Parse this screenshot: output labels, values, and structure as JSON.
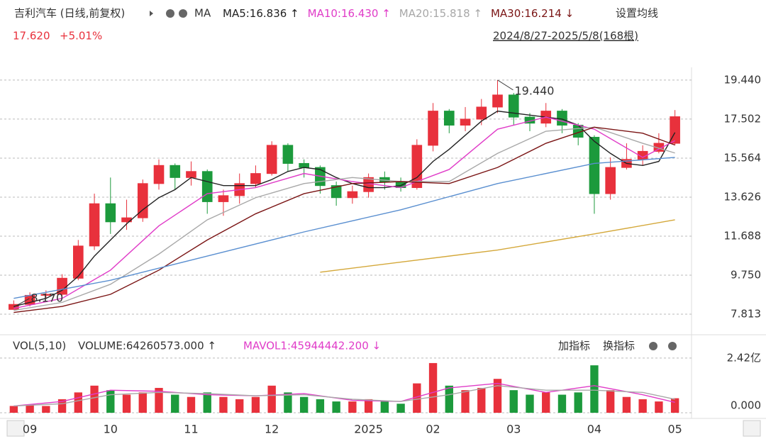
{
  "chart_data": {
    "type": "candlestick",
    "title": "吉利汽车 (日线,前复权)",
    "ma_label": "MA",
    "settings": "设置均线",
    "price": "17.620",
    "change": "+5.01%",
    "range": "2024/8/27-2025/5/8(168根)",
    "up_color": "#e8313c",
    "down_color": "#1c9a3c",
    "open": [
      8.05,
      8.3,
      8.75,
      8.8,
      9.6,
      11.2,
      13.3,
      12.4,
      12.6,
      14.3,
      15.2,
      14.6,
      14.9,
      13.4,
      13.7,
      14.3,
      14.8,
      16.2,
      15.3,
      15.1,
      14.2,
      13.6,
      13.9,
      14.6,
      14.4,
      14.1,
      16.2,
      17.9,
      17.2,
      17.5,
      18.1,
      18.7,
      17.6,
      17.3,
      17.9,
      17.2,
      16.6,
      13.8,
      15.1,
      15.5,
      15.9,
      16.3
    ],
    "high": [
      8.5,
      8.9,
      9.0,
      9.8,
      11.5,
      13.8,
      14.6,
      13.5,
      14.5,
      15.5,
      15.3,
      15.4,
      15.0,
      14.0,
      14.8,
      15.2,
      16.4,
      16.3,
      15.5,
      15.2,
      14.4,
      14.2,
      14.8,
      14.9,
      14.6,
      16.5,
      18.3,
      18.0,
      18.1,
      18.5,
      19.44,
      18.8,
      17.8,
      18.3,
      18.0,
      17.3,
      16.7,
      15.6,
      16.3,
      16.2,
      16.8,
      17.95
    ],
    "low": [
      8.17,
      8.2,
      8.6,
      8.7,
      9.5,
      11.0,
      11.8,
      12.0,
      12.4,
      14.0,
      14.0,
      14.2,
      12.8,
      12.7,
      13.3,
      14.1,
      14.7,
      14.9,
      14.6,
      13.8,
      13.2,
      13.3,
      13.6,
      14.0,
      13.9,
      14.0,
      15.9,
      16.8,
      16.9,
      17.2,
      17.8,
      17.2,
      16.9,
      17.1,
      16.8,
      16.2,
      12.8,
      13.5,
      15.0,
      15.2,
      15.8,
      16.2
    ],
    "close": [
      8.3,
      8.75,
      8.8,
      9.6,
      11.2,
      13.3,
      12.4,
      12.6,
      14.3,
      15.2,
      14.6,
      14.9,
      13.4,
      13.7,
      14.3,
      14.8,
      16.2,
      15.3,
      15.1,
      14.2,
      13.6,
      13.9,
      14.6,
      14.4,
      14.1,
      16.2,
      17.9,
      17.2,
      17.5,
      18.1,
      18.7,
      17.6,
      17.3,
      17.9,
      17.2,
      16.6,
      13.8,
      15.1,
      15.5,
      15.9,
      16.3,
      17.62
    ],
    "ylim": [
      7.04,
      20.07
    ],
    "yticks": [
      7.813,
      {
        "value": 9.75,
        "label": "9.750"
      },
      11.688,
      13.626,
      15.564,
      17.502,
      {
        "value": 19.44,
        "label": "19.440"
      }
    ],
    "xticks": [
      {
        "value": 1,
        "label": "09"
      },
      {
        "value": 6,
        "label": "10"
      },
      {
        "value": 11,
        "label": "11"
      },
      {
        "value": 16,
        "label": "12"
      },
      {
        "value": 22,
        "label": "2025"
      },
      {
        "value": 26,
        "label": "02"
      },
      {
        "value": 31,
        "label": "03"
      },
      {
        "value": 36,
        "label": "04"
      },
      {
        "value": 41,
        "label": "05"
      }
    ],
    "legend_labels": [
      "MA5:16.836 ↑",
      "MA10:16.430 ↑",
      "MA20:15.818 ↑",
      "MA30:16.214 ↓"
    ],
    "series": [
      {
        "name": "MA5",
        "color": "#222222",
        "x": [
          0,
          1,
          2,
          3,
          4,
          5,
          6,
          7,
          8,
          9,
          10,
          11,
          12,
          13,
          14,
          15,
          16,
          17,
          18,
          19,
          20,
          21,
          22,
          23,
          24,
          25,
          26,
          27,
          28,
          29,
          30,
          31,
          32,
          33,
          34,
          35,
          36,
          37,
          38,
          39,
          40,
          41
        ],
        "values": [
          8.2,
          8.4,
          8.6,
          9.0,
          9.7,
          10.7,
          11.5,
          12.3,
          13.0,
          13.6,
          14.0,
          14.6,
          14.4,
          14.2,
          14.2,
          14.2,
          14.5,
          14.9,
          15.1,
          15.0,
          14.6,
          14.3,
          14.1,
          14.1,
          14.2,
          14.6,
          15.4,
          16.0,
          16.7,
          17.4,
          17.9,
          17.8,
          17.7,
          17.6,
          17.5,
          17.2,
          16.4,
          15.8,
          15.3,
          15.2,
          15.4,
          16.836
        ]
      },
      {
        "name": "MA10",
        "color": "#e03cc8",
        "x": [
          0,
          3,
          6,
          9,
          12,
          15,
          18,
          21,
          24,
          27,
          30,
          33,
          36,
          39,
          41
        ],
        "values": [
          8.1,
          8.6,
          10.0,
          12.2,
          13.8,
          14.1,
          14.8,
          14.4,
          14.1,
          15.0,
          17.0,
          17.6,
          17.0,
          15.6,
          16.43
        ]
      },
      {
        "name": "MA20",
        "color": "#a8a8a8",
        "x": [
          0,
          3,
          6,
          9,
          12,
          15,
          18,
          21,
          24,
          27,
          30,
          33,
          36,
          39,
          41
        ],
        "values": [
          8.0,
          8.4,
          9.3,
          10.8,
          12.5,
          13.6,
          14.3,
          14.6,
          14.4,
          14.4,
          15.8,
          16.9,
          17.1,
          16.3,
          15.818
        ]
      },
      {
        "name": "MA30",
        "color": "#7a1414",
        "x": [
          0,
          3,
          6,
          9,
          12,
          15,
          18,
          21,
          24,
          27,
          30,
          33,
          36,
          39,
          41
        ],
        "values": [
          7.9,
          8.2,
          8.8,
          10.0,
          11.5,
          12.8,
          13.8,
          14.3,
          14.4,
          14.3,
          15.1,
          16.3,
          17.1,
          16.8,
          16.214
        ]
      },
      {
        "color": "#5a8fd0",
        "x": [
          0,
          6,
          12,
          18,
          24,
          30,
          36,
          41
        ],
        "values": [
          8.6,
          9.5,
          10.7,
          11.9,
          13.0,
          14.3,
          15.3,
          15.6
        ]
      },
      {
        "color": "#d4a83a",
        "x": [
          19,
          24,
          30,
          36,
          41
        ],
        "values": [
          9.9,
          10.4,
          11.0,
          11.8,
          12.5
        ]
      }
    ],
    "annotations": [
      {
        "text": "19.440",
        "value": 19.44,
        "index": 30
      },
      {
        "text": "8.170",
        "value": 8.17,
        "index": 0
      }
    ],
    "volume": {
      "title": "VOL(5,10)",
      "label": "VOLUME:64260573.000 ↑",
      "mavol_label": "MAVOL1:45944442.200 ↓",
      "add": "加指标",
      "switch": "换指标",
      "values": [
        30000000,
        35000000,
        30000000,
        60000000,
        90000000,
        120000000,
        100000000,
        80000000,
        90000000,
        110000000,
        80000000,
        70000000,
        90000000,
        70000000,
        60000000,
        70000000,
        120000000,
        90000000,
        70000000,
        60000000,
        50000000,
        50000000,
        60000000,
        50000000,
        40000000,
        130000000,
        220000000,
        120000000,
        100000000,
        110000000,
        150000000,
        100000000,
        80000000,
        90000000,
        80000000,
        90000000,
        210000000,
        100000000,
        70000000,
        60000000,
        50000000,
        64260573
      ],
      "ylim": [
        0,
        248000000
      ],
      "yticks": [
        {
          "value": 242000000,
          "label": "2.42亿"
        },
        {
          "value": 0,
          "label": "0.000"
        }
      ],
      "series": [
        {
          "name": "MAVOL1",
          "color": "#e03cc8",
          "x": [
            0,
            3,
            6,
            9,
            12,
            15,
            18,
            21,
            24,
            27,
            30,
            33,
            36,
            39,
            41
          ],
          "values": [
            30000000,
            50000000,
            100000000,
            95000000,
            80000000,
            75000000,
            85000000,
            55000000,
            50000000,
            110000000,
            130000000,
            90000000,
            120000000,
            80000000,
            45944442.2
          ]
        },
        {
          "color": "#a8a8a8",
          "x": [
            0,
            3,
            6,
            9,
            12,
            15,
            18,
            21,
            24,
            27,
            30,
            33,
            36,
            39,
            41
          ],
          "values": [
            30000000,
            40000000,
            80000000,
            90000000,
            85000000,
            75000000,
            80000000,
            60000000,
            50000000,
            80000000,
            120000000,
            100000000,
            100000000,
            90000000,
            60000000
          ]
        }
      ]
    }
  }
}
